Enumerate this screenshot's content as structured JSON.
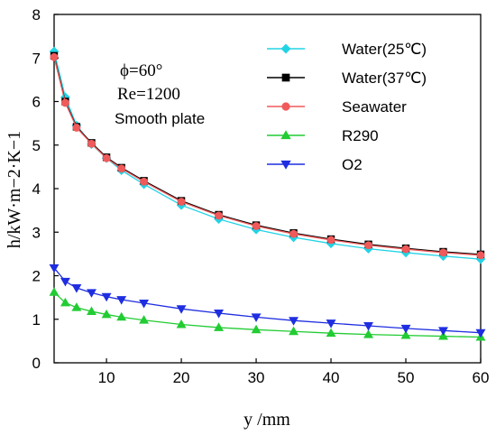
{
  "chart_data": {
    "type": "line",
    "xlabel": "y /mm",
    "ylabel": "h/kW·m−2·K−1",
    "xlim": [
      3,
      60
    ],
    "ylim": [
      0,
      8
    ],
    "xticks": [
      10,
      20,
      30,
      40,
      50,
      60
    ],
    "yticks": [
      0,
      1,
      2,
      3,
      4,
      5,
      6,
      7,
      8
    ],
    "grid": false,
    "legend_position": "top-right",
    "annotations": [
      "ϕ=60°",
      "Re=1200",
      "Smooth plate"
    ],
    "series": [
      {
        "name": "Water(25℃)",
        "color": "#22d3e6",
        "marker": "diamond",
        "x": [
          3,
          4.5,
          6,
          8,
          10,
          12,
          15,
          20,
          25,
          30,
          35,
          40,
          45,
          50,
          55,
          60
        ],
        "y": [
          7.15,
          6.1,
          5.45,
          5.02,
          4.7,
          4.42,
          4.1,
          3.62,
          3.3,
          3.06,
          2.88,
          2.74,
          2.62,
          2.53,
          2.45,
          2.38
        ]
      },
      {
        "name": "Water(37℃)",
        "color": "#000000",
        "marker": "square",
        "x": [
          3,
          4.5,
          6,
          8,
          10,
          12,
          15,
          20,
          25,
          30,
          35,
          40,
          45,
          50,
          55,
          60
        ],
        "y": [
          7.05,
          6.0,
          5.42,
          5.05,
          4.72,
          4.48,
          4.18,
          3.72,
          3.4,
          3.16,
          2.98,
          2.84,
          2.72,
          2.63,
          2.55,
          2.49
        ]
      },
      {
        "name": "Seawater",
        "color": "#f05a5a",
        "marker": "circle",
        "x": [
          3,
          4.5,
          6,
          8,
          10,
          12,
          15,
          20,
          25,
          30,
          35,
          40,
          45,
          50,
          55,
          60
        ],
        "y": [
          7.02,
          5.97,
          5.4,
          5.03,
          4.7,
          4.46,
          4.16,
          3.7,
          3.38,
          3.14,
          2.96,
          2.82,
          2.7,
          2.61,
          2.53,
          2.47
        ]
      },
      {
        "name": "R290",
        "color": "#22cc33",
        "marker": "triangle-up",
        "x": [
          3,
          4.5,
          6,
          8,
          10,
          12,
          15,
          20,
          25,
          30,
          35,
          40,
          45,
          50,
          55,
          60
        ],
        "y": [
          1.62,
          1.38,
          1.27,
          1.18,
          1.11,
          1.05,
          0.98,
          0.88,
          0.81,
          0.76,
          0.72,
          0.68,
          0.65,
          0.63,
          0.61,
          0.59
        ]
      },
      {
        "name": "O2",
        "color": "#1f2ee0",
        "marker": "triangle-down",
        "x": [
          3,
          4.5,
          6,
          8,
          10,
          12,
          15,
          20,
          25,
          30,
          35,
          40,
          45,
          50,
          55,
          60
        ],
        "y": [
          2.18,
          1.87,
          1.72,
          1.61,
          1.52,
          1.45,
          1.37,
          1.24,
          1.14,
          1.05,
          0.97,
          0.91,
          0.85,
          0.79,
          0.74,
          0.69
        ]
      }
    ]
  }
}
